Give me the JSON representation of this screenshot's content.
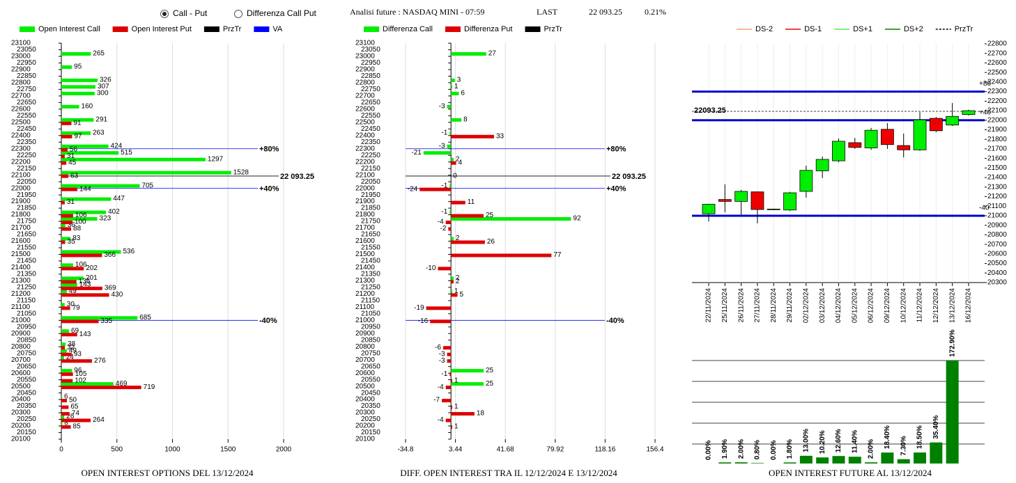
{
  "header": {
    "options": [
      {
        "label": "Call - Put",
        "selected": true
      },
      {
        "label": "Differenza Call Put",
        "selected": false
      }
    ],
    "info": "Analisi future : NASDAQ MINI - 07:59",
    "last_label": "LAST",
    "last_value": "22 093.25",
    "change": "0.21%"
  },
  "chart_data": [
    {
      "type": "hbar",
      "title": "OPEN INTEREST OPTIONS DEL 13/12/2024",
      "categories": [
        23100,
        23050,
        23000,
        22950,
        22900,
        22850,
        22800,
        22750,
        22700,
        22650,
        22600,
        22550,
        22500,
        22450,
        22400,
        22350,
        22300,
        22250,
        22200,
        22150,
        22100,
        22050,
        22000,
        21950,
        21900,
        21850,
        21800,
        21750,
        21700,
        21650,
        21600,
        21550,
        21500,
        21450,
        21400,
        21350,
        21300,
        21250,
        21200,
        21150,
        21100,
        21050,
        21000,
        20950,
        20900,
        20850,
        20800,
        20750,
        20700,
        20650,
        20600,
        20550,
        20500,
        20450,
        20400,
        20350,
        20300,
        20250,
        20200,
        20150,
        20100
      ],
      "series": [
        {
          "name": "Open Interest Call",
          "color": "#00ee00",
          "values": [
            null,
            null,
            265,
            null,
            95,
            null,
            326,
            307,
            300,
            null,
            160,
            null,
            291,
            null,
            263,
            null,
            424,
            515,
            1297,
            null,
            1528,
            null,
            705,
            null,
            447,
            null,
            402,
            323,
            36,
            null,
            83,
            null,
            536,
            null,
            106,
            null,
            201,
            143,
            49,
            null,
            30,
            null,
            685,
            null,
            69,
            null,
            38,
            49,
            24,
            null,
            96,
            null,
            469,
            null,
            6,
            null,
            null,
            26,
            8,
            null,
            null
          ]
        },
        {
          "name": "Open Interest Put",
          "color": "#dd0000",
          "values": [
            null,
            null,
            null,
            null,
            null,
            null,
            null,
            null,
            null,
            null,
            null,
            null,
            91,
            null,
            97,
            null,
            56,
            31,
            45,
            null,
            63,
            null,
            144,
            null,
            31,
            null,
            106,
            100,
            88,
            null,
            35,
            null,
            366,
            null,
            202,
            null,
            136,
            369,
            430,
            null,
            79,
            null,
            335,
            null,
            143,
            null,
            32,
            93,
            276,
            null,
            105,
            102,
            719,
            null,
            50,
            65,
            74,
            264,
            85,
            null,
            null
          ]
        }
      ],
      "lines_legend": [
        {
          "name": "PrzTr",
          "color": "#000000"
        },
        {
          "name": "VA",
          "color": "#0000ff"
        }
      ],
      "lines": [
        {
          "value": 22300,
          "label": "+80%",
          "color": "#0000ff"
        },
        {
          "value": 22093.25,
          "label": "22 093.25",
          "color": "#000000"
        },
        {
          "value": 22000,
          "label": "+40%",
          "color": "#0000ff"
        },
        {
          "value": 21000,
          "label": "-40%",
          "color": "#0000ff"
        }
      ],
      "xlim": [
        0,
        2000
      ],
      "xticks": [
        0,
        500,
        1000,
        1500,
        2000
      ],
      "grid": true
    },
    {
      "type": "hbar",
      "title": "DIFF. OPEN INTEREST TRA IL 12/12/2024 E 13/12/2024",
      "categories": [
        23100,
        23050,
        23000,
        22950,
        22900,
        22850,
        22800,
        22750,
        22700,
        22650,
        22600,
        22550,
        22500,
        22450,
        22400,
        22350,
        22300,
        22250,
        22200,
        22150,
        22100,
        22050,
        22000,
        21950,
        21900,
        21850,
        21800,
        21750,
        21700,
        21650,
        21600,
        21550,
        21500,
        21450,
        21400,
        21350,
        21300,
        21250,
        21200,
        21150,
        21100,
        21050,
        21000,
        20950,
        20900,
        20850,
        20800,
        20750,
        20700,
        20650,
        20600,
        20550,
        20500,
        20450,
        20400,
        20350,
        20300,
        20250,
        20200,
        20150,
        20100
      ],
      "series": [
        {
          "name": "Differenza Call",
          "color": "#00ee00",
          "values": [
            null,
            null,
            27,
            null,
            null,
            null,
            3,
            1,
            6,
            null,
            -3,
            null,
            8,
            null,
            -1,
            null,
            -3,
            -21,
            2,
            null,
            null,
            null,
            -1,
            null,
            null,
            null,
            -1,
            92,
            null,
            null,
            2,
            null,
            null,
            null,
            null,
            null,
            2,
            null,
            1,
            null,
            null,
            null,
            null,
            null,
            null,
            null,
            null,
            null,
            null,
            null,
            25,
            null,
            25,
            null,
            null,
            null,
            null,
            null,
            null,
            null,
            null
          ]
        },
        {
          "name": "Differenza Put",
          "color": "#dd0000",
          "values": [
            null,
            null,
            null,
            null,
            null,
            null,
            null,
            null,
            null,
            null,
            null,
            null,
            null,
            null,
            33,
            null,
            null,
            null,
            4,
            null,
            0,
            null,
            -24,
            null,
            11,
            null,
            25,
            -4,
            -2,
            null,
            26,
            null,
            77,
            null,
            -10,
            null,
            2,
            null,
            5,
            null,
            -19,
            null,
            -16,
            null,
            null,
            null,
            -6,
            -3,
            -3,
            null,
            -1,
            1,
            -4,
            null,
            -7,
            1,
            18,
            -4,
            1,
            null,
            null
          ]
        }
      ],
      "lines_legend": [
        {
          "name": "PrzTr",
          "color": "#000000"
        }
      ],
      "lines": [
        {
          "value": 22300,
          "label": "+80%",
          "color": "#0000ff"
        },
        {
          "value": 22093.25,
          "label": "22 093.25",
          "color": "#000000"
        },
        {
          "value": 22000,
          "label": "+40%",
          "color": "#0000ff"
        },
        {
          "value": 21000,
          "label": "-40%",
          "color": "#0000ff"
        }
      ],
      "xlim": [
        -34.8,
        156.4
      ],
      "xticks": [
        -34.8,
        3.44,
        41.68,
        79.92,
        118.16,
        156.4
      ],
      "grid": true
    },
    {
      "type": "candlestick",
      "x": [
        "22/11/2024",
        "25/11/2024",
        "26/11/2024",
        "27/11/2024",
        "28/11/2024",
        "29/11/2024",
        "02/12/2024",
        "03/12/2024",
        "04/12/2024",
        "05/12/2024",
        "06/12/2024",
        "09/12/2024",
        "10/12/2024",
        "11/12/2024",
        "12/12/2024",
        "13/12/2024",
        "16/12/2024"
      ],
      "open": [
        21020,
        21170,
        21150,
        21250,
        21070,
        21060,
        21255,
        21470,
        21575,
        21765,
        21710,
        21905,
        21735,
        21690,
        22020,
        21950,
        22060
      ],
      "high": [
        21125,
        21330,
        21270,
        21255,
        21075,
        21250,
        21525,
        21620,
        21810,
        21815,
        21920,
        21970,
        21860,
        22085,
        22035,
        22180,
        22110
      ],
      "low": [
        20940,
        21035,
        21010,
        20920,
        21065,
        21050,
        21190,
        21395,
        21560,
        21700,
        21690,
        21700,
        21610,
        21680,
        21875,
        21940,
        22050
      ],
      "close": [
        21120,
        21150,
        21255,
        21065,
        21070,
        21240,
        21475,
        21590,
        21780,
        21715,
        21895,
        21745,
        21690,
        22005,
        21890,
        22040,
        22100
      ],
      "up_color": "#00ee00",
      "down_color": "#ee0000",
      "legend": [
        {
          "name": "DS-2",
          "color": "#f4a070"
        },
        {
          "name": "DS-1",
          "color": "#ee0000"
        },
        {
          "name": "DS+1",
          "color": "#55ee55"
        },
        {
          "name": "DS+2",
          "color": "#008000"
        },
        {
          "name": "PrzTr",
          "color": "#000000",
          "dash": true
        }
      ],
      "lines": [
        {
          "value": 22300,
          "label": "+80",
          "color": "#0000cc"
        },
        {
          "value": 22000,
          "label": "+40",
          "color": "#0000cc"
        },
        {
          "value": 21000,
          "label": "-40",
          "color": "#0000cc"
        },
        {
          "value": 22093.25,
          "label": "22093.25",
          "color": "#000000",
          "dash": true
        }
      ],
      "ylim": [
        20300,
        22800
      ],
      "yticks": [
        20300,
        20400,
        20500,
        20600,
        20700,
        20800,
        20900,
        21000,
        21100,
        21200,
        21300,
        21400,
        21500,
        21600,
        21700,
        21800,
        21900,
        22000,
        22100,
        22200,
        22300,
        22400,
        22500,
        22600,
        22700,
        22800
      ]
    },
    {
      "type": "bar",
      "title": "OPEN INTEREST FUTURE AL 13/12/2024",
      "values": [
        0,
        1.9,
        2,
        0.8,
        0,
        1.8,
        13,
        10.2,
        12.6,
        11.4,
        2,
        18.4,
        7.3,
        18.5,
        35.4,
        172.9
      ],
      "value_labels": [
        "0.00%",
        "1.90%",
        "2.00%",
        "0.80%",
        "0.00%",
        "1.80%",
        "13.00%",
        "10.20%",
        "12.60%",
        "11.40%",
        "2.00%",
        "18.40%",
        "7.30%",
        "18.50%",
        "35.40%",
        "172.90%"
      ],
      "color": "#008000",
      "ylim": [
        0,
        172.9
      ]
    }
  ]
}
